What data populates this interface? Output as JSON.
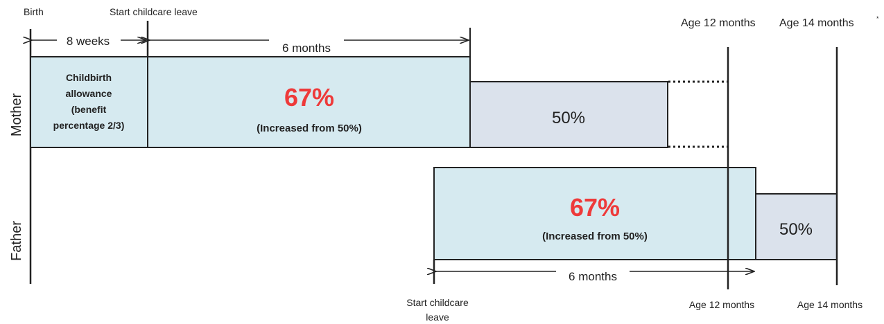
{
  "top_labels": {
    "birth": "Birth",
    "start_leave_mother": "Start childcare leave",
    "age12_top": "Age 12 months",
    "age14_top": "Age 14 months",
    "age14_top_mark": "*"
  },
  "bottom_labels": {
    "start_leave_father_line1": "Start childcare",
    "start_leave_father_line2": "leave",
    "age12_bottom": "Age 12 months",
    "age14_bottom": "Age 14 months"
  },
  "rows": {
    "mother": "Mother",
    "father": "Father"
  },
  "durations": {
    "eight_weeks": "8 weeks",
    "six_months_mother": "6 months",
    "six_months_father": "6 months"
  },
  "mother": {
    "allowance_lines": [
      "Childbirth",
      "allowance",
      "(benefit",
      "percentage 2/3)"
    ],
    "main_pct": "67%",
    "main_note": "(Increased from 50%)",
    "second_pct": "50%"
  },
  "father": {
    "main_pct": "67%",
    "main_note": "(Increased from 50%)",
    "second_pct": "50%"
  },
  "colors": {
    "box_light_blue": "#d6eaf0",
    "box_grey_blue": "#dbe2ec",
    "stroke": "#222222",
    "accent_red": "#ee3a3a"
  }
}
